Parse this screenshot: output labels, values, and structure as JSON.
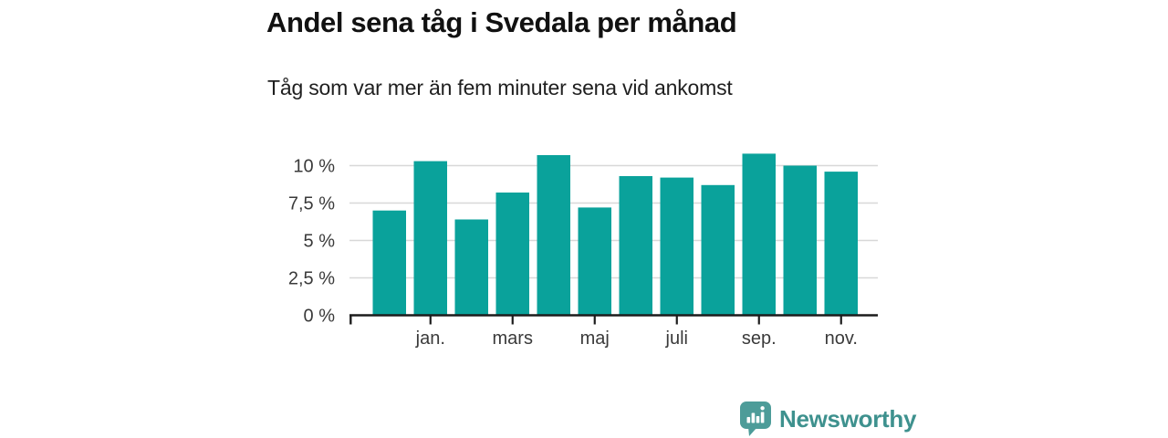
{
  "header": {
    "title": "Andel sena tåg i Svedala per månad",
    "subtitle": "Tåg som var mer än fem minuter sena vid ankomst"
  },
  "chart_data": {
    "type": "bar",
    "title": "Andel sena tåg i Svedala per månad",
    "subtitle": "Tåg som var mer än fem minuter sena vid ankomst",
    "unit": "%",
    "categories": [
      "",
      "jan.",
      "",
      "mars",
      "",
      "maj",
      "",
      "juli",
      "",
      "sep.",
      "",
      "nov."
    ],
    "values": [
      7.0,
      10.3,
      6.4,
      8.2,
      10.7,
      7.2,
      9.3,
      9.2,
      8.7,
      10.8,
      10.0,
      9.6
    ],
    "x_tick_indices": [
      1,
      3,
      5,
      7,
      9,
      11
    ],
    "x_tick_labels": [
      "jan.",
      "mars",
      "maj",
      "juli",
      "sep.",
      "nov."
    ],
    "y_ticks": [
      {
        "value": 0,
        "label": "0 %"
      },
      {
        "value": 2.5,
        "label": "2,5 %"
      },
      {
        "value": 5,
        "label": "5 %"
      },
      {
        "value": 7.5,
        "label": "7,5 %"
      },
      {
        "value": 10,
        "label": "10 %"
      }
    ],
    "ylim": [
      0,
      11.3
    ],
    "grid": true,
    "legend": false,
    "bar_color": "#0aa29b",
    "grid_color": "#d8d8d8",
    "axis_color": "#1c1c1c",
    "label_color": "#3a3a3a"
  },
  "branding": {
    "logo_text": "Newsworthy",
    "logo_icon": "speech-bubble-bar-chart-icon",
    "logo_text_color": "#3e918e",
    "logo_bubble_color": "#4d9c99"
  }
}
